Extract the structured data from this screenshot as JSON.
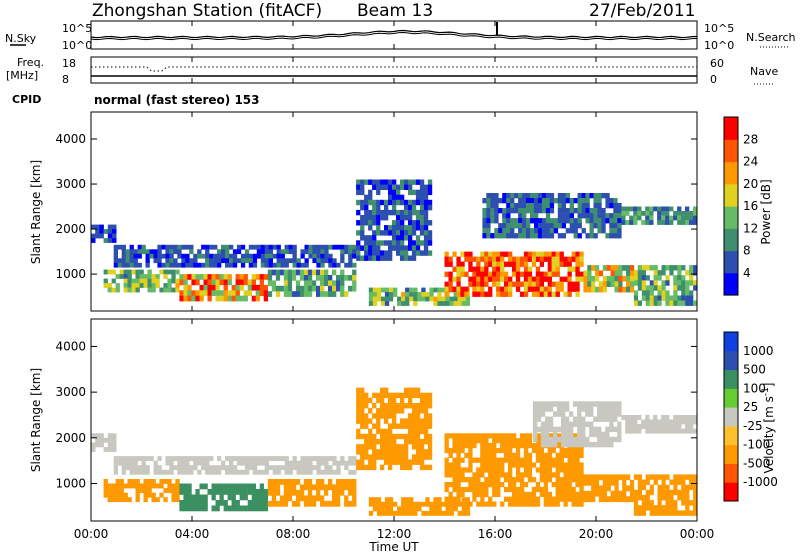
{
  "header": {
    "title": "Zhongshan Station (fitACF)",
    "beam": "Beam 13",
    "date": "27/Feb/2011"
  },
  "params": {
    "nsky_label": "N.Sky",
    "nsearch_label": "N.Search",
    "noise_ticks": [
      "10^5",
      "10^0"
    ],
    "freq_label": "Freq.",
    "freq_unit": "[MHz]",
    "freq_ticks": [
      "18",
      "8"
    ],
    "nave_label": "Nave",
    "nave_ticks": [
      "60",
      "0"
    ],
    "cpid_label": "CPID",
    "cpid_value": "normal (fast stereo) 153"
  },
  "colors": {
    "power_scale": [
      "#0000ff",
      "#2d4faf",
      "#3f8f6f",
      "#66bb66",
      "#e0d020",
      "#ff9900",
      "#ff5500",
      "#ff0000"
    ],
    "velocity_scale": [
      "#ff0000",
      "#ff5500",
      "#ff9900",
      "#ffc030",
      "#c8c8c0",
      "#66cc33",
      "#3a9060",
      "#2d4faf",
      "#1040e0"
    ]
  },
  "chart_data": [
    {
      "type": "heatmap",
      "title": "Power",
      "ylabel": "Slant Range [km]",
      "xlabel": "Time UT",
      "x_ticks": [
        "00:00",
        "04:00",
        "08:00",
        "12:00",
        "16:00",
        "20:00",
        "00:00"
      ],
      "y_ticks": [
        1000,
        2000,
        3000,
        4000
      ],
      "xlim_hours": [
        0,
        24
      ],
      "ylim_km": [
        180,
        4600
      ],
      "colorbar": {
        "label": "Power [dB]",
        "ticks": [
          "4",
          "8",
          "12",
          "16",
          "20",
          "24",
          "28"
        ],
        "range": [
          0,
          30
        ]
      },
      "regions": [
        {
          "t0": 0.0,
          "t1": 1.0,
          "r0": 1700,
          "r1": 2100,
          "value": 6
        },
        {
          "t0": 0.9,
          "t1": 10.5,
          "r0": 1150,
          "r1": 1650,
          "value": 6
        },
        {
          "t0": 0.5,
          "t1": 3.5,
          "r0": 600,
          "r1": 1100,
          "value": 14
        },
        {
          "t0": 3.5,
          "t1": 7.0,
          "r0": 400,
          "r1": 1000,
          "value": 22
        },
        {
          "t0": 7.0,
          "t1": 10.5,
          "r0": 500,
          "r1": 1100,
          "value": 12
        },
        {
          "t0": 10.5,
          "t1": 13.5,
          "r0": 1300,
          "r1": 3100,
          "value": 6
        },
        {
          "t0": 11.0,
          "t1": 15.0,
          "r0": 300,
          "r1": 700,
          "value": 14
        },
        {
          "t0": 14.0,
          "t1": 19.5,
          "r0": 500,
          "r1": 1500,
          "value": 26
        },
        {
          "t0": 15.5,
          "t1": 21.0,
          "r0": 1800,
          "r1": 2800,
          "value": 7
        },
        {
          "t0": 19.5,
          "t1": 21.5,
          "r0": 600,
          "r1": 1200,
          "value": 18
        },
        {
          "t0": 21.5,
          "t1": 24.0,
          "r0": 300,
          "r1": 1200,
          "value": 12
        },
        {
          "t0": 21.0,
          "t1": 24.0,
          "r0": 2100,
          "r1": 2500,
          "value": 10
        }
      ]
    },
    {
      "type": "heatmap",
      "title": "Velocity",
      "ylabel": "Slant Range [km]",
      "xlabel": "Time UT",
      "x_ticks": [
        "00:00",
        "04:00",
        "08:00",
        "12:00",
        "16:00",
        "20:00",
        "00:00"
      ],
      "y_ticks": [
        1000,
        2000,
        3000,
        4000
      ],
      "xlim_hours": [
        0,
        24
      ],
      "ylim_km": [
        180,
        4600
      ],
      "colorbar": {
        "label": "Velocity [m s^-1]",
        "ticks": [
          "1000",
          "500",
          "100",
          "25",
          "-25",
          "-100",
          "-500",
          "-1000"
        ]
      },
      "regions": [
        {
          "t0": 0.0,
          "t1": 1.0,
          "r0": 1700,
          "r1": 2100,
          "value": 0
        },
        {
          "t0": 0.9,
          "t1": 10.5,
          "r0": 1200,
          "r1": 1600,
          "value": 0
        },
        {
          "t0": 0.5,
          "t1": 3.5,
          "r0": 600,
          "r1": 1100,
          "value": -300
        },
        {
          "t0": 3.5,
          "t1": 7.0,
          "r0": 400,
          "r1": 1000,
          "value": 200
        },
        {
          "t0": 7.0,
          "t1": 10.5,
          "r0": 500,
          "r1": 1100,
          "value": -200
        },
        {
          "t0": 10.5,
          "t1": 13.5,
          "r0": 1300,
          "r1": 3100,
          "value": -150
        },
        {
          "t0": 11.0,
          "t1": 15.0,
          "r0": 300,
          "r1": 700,
          "value": -150
        },
        {
          "t0": 14.0,
          "t1": 19.5,
          "r0": 500,
          "r1": 2100,
          "value": -300
        },
        {
          "t0": 17.5,
          "t1": 21.0,
          "r0": 1800,
          "r1": 2800,
          "value": 0
        },
        {
          "t0": 19.5,
          "t1": 21.5,
          "r0": 600,
          "r1": 1200,
          "value": -150
        },
        {
          "t0": 21.5,
          "t1": 24.0,
          "r0": 300,
          "r1": 1200,
          "value": -300
        },
        {
          "t0": 21.0,
          "t1": 24.0,
          "r0": 2100,
          "r1": 2500,
          "value": 0
        }
      ]
    }
  ]
}
